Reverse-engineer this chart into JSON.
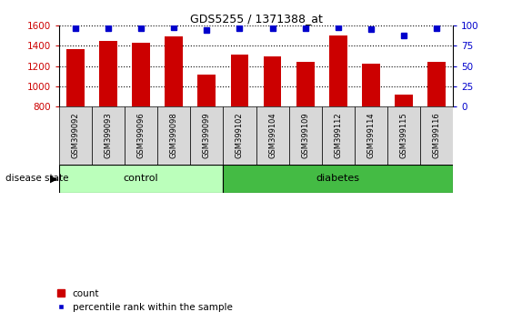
{
  "title": "GDS5255 / 1371388_at",
  "categories": [
    "GSM399092",
    "GSM399093",
    "GSM399096",
    "GSM399098",
    "GSM399099",
    "GSM399102",
    "GSM399104",
    "GSM399109",
    "GSM399112",
    "GSM399114",
    "GSM399115",
    "GSM399116"
  ],
  "counts": [
    1365,
    1445,
    1435,
    1490,
    1115,
    1315,
    1295,
    1245,
    1500,
    1225,
    915,
    1240
  ],
  "percentile_ranks": [
    97,
    97,
    97,
    98,
    95,
    97,
    97,
    97,
    98,
    96,
    88,
    97
  ],
  "bar_color": "#cc0000",
  "dot_color": "#0000cc",
  "ylim_left": [
    800,
    1600
  ],
  "ylim_right": [
    0,
    100
  ],
  "yticks_left": [
    800,
    1000,
    1200,
    1400,
    1600
  ],
  "yticks_right": [
    0,
    25,
    50,
    75,
    100
  ],
  "n_control": 5,
  "n_diabetes": 7,
  "control_color": "#bbffbb",
  "diabetes_color": "#44bb44",
  "disease_label": "disease state",
  "control_label": "control",
  "diabetes_label": "diabetes",
  "legend_count": "count",
  "legend_percentile": "percentile rank within the sample",
  "tick_label_color_left": "#cc0000",
  "tick_label_color_right": "#0000cc",
  "tickbox_color": "#d8d8d8",
  "fig_width": 5.63,
  "fig_height": 3.54,
  "dpi": 100
}
